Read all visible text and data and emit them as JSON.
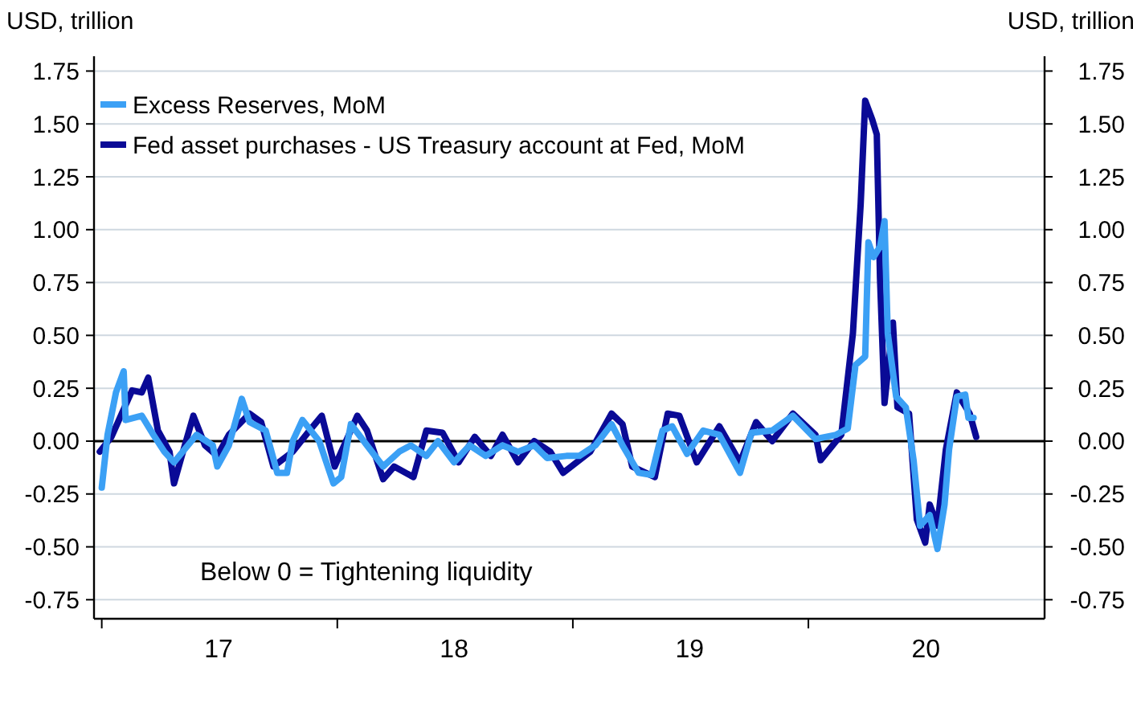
{
  "chart_data": {
    "type": "line",
    "ylabel": "USD, trillion",
    "y2label": "USD, trillion",
    "annotations": [
      "Below 0 = Tightening liquidity"
    ],
    "xlim": [
      "2016-12-20",
      "2021-01-01"
    ],
    "xticks": [
      {
        "value": "2017-01-01",
        "label": null
      },
      {
        "value": "2017-07-01",
        "label": "17"
      },
      {
        "value": "2018-01-01",
        "label": null
      },
      {
        "value": "2018-07-01",
        "label": "18"
      },
      {
        "value": "2019-01-01",
        "label": null
      },
      {
        "value": "2019-07-01",
        "label": "19"
      },
      {
        "value": "2020-01-01",
        "label": null
      },
      {
        "value": "2020-07-01",
        "label": "20"
      }
    ],
    "ylim": [
      -0.84,
      1.82
    ],
    "yticks": [
      {
        "value": -0.75,
        "label": "-0.75"
      },
      {
        "value": -0.5,
        "label": "-0.50"
      },
      {
        "value": -0.25,
        "label": "-0.25"
      },
      {
        "value": 0,
        "label": "0.00"
      },
      {
        "value": 0.25,
        "label": "0.25"
      },
      {
        "value": 0.5,
        "label": "0.50"
      },
      {
        "value": 0.75,
        "label": "0.75"
      },
      {
        "value": 1,
        "label": "1.00"
      },
      {
        "value": 1.25,
        "label": "1.25"
      },
      {
        "value": 1.5,
        "label": "1.50"
      },
      {
        "value": 1.75,
        "label": "1.75"
      }
    ],
    "y2lim": [
      -0.84,
      1.82
    ],
    "y2ticks": [
      {
        "value": -0.75,
        "label": "-0.75"
      },
      {
        "value": -0.5,
        "label": "-0.50"
      },
      {
        "value": -0.25,
        "label": "-0.25"
      },
      {
        "value": 0,
        "label": "0.00"
      },
      {
        "value": 0.25,
        "label": "0.25"
      },
      {
        "value": 0.5,
        "label": "0.50"
      },
      {
        "value": 0.75,
        "label": "0.75"
      },
      {
        "value": 1,
        "label": "1.00"
      },
      {
        "value": 1.25,
        "label": "1.25"
      },
      {
        "value": 1.5,
        "label": "1.50"
      },
      {
        "value": 1.75,
        "label": "1.75"
      }
    ],
    "grid": "y",
    "legend": "top left",
    "line_style": "solid",
    "ref_lines": [
      {
        "axis": "y",
        "value": 0,
        "color": "#000000"
      }
    ],
    "series": [
      {
        "name": "Fed asset purchases - US Treasury account at Fed, MoM",
        "color": "#0a0a96",
        "x": [
          "2016-12-29",
          "2017-01-16",
          "2017-02-17",
          "2017-03-04",
          "2017-03-14",
          "2017-03-29",
          "2017-04-16",
          "2017-04-23",
          "2017-05-05",
          "2017-05-23",
          "2017-06-10",
          "2017-06-29",
          "2017-07-17",
          "2017-08-18",
          "2017-09-05",
          "2017-09-24",
          "2017-10-24",
          "2017-11-19",
          "2017-12-08",
          "2017-12-28",
          "2018-02-01",
          "2018-02-16",
          "2018-03-13",
          "2018-03-30",
          "2018-04-29",
          "2018-05-19",
          "2018-06-13",
          "2018-07-08",
          "2018-08-02",
          "2018-08-27",
          "2018-09-14",
          "2018-10-08",
          "2018-11-02",
          "2018-11-27",
          "2018-12-17",
          "2019-01-28",
          "2019-03-02",
          "2019-03-19",
          "2019-04-03",
          "2019-05-08",
          "2019-05-28",
          "2019-06-15",
          "2019-07-12",
          "2019-08-16",
          "2019-09-17",
          "2019-10-12",
          "2019-11-06",
          "2019-12-08",
          "2020-01-12",
          "2020-01-20",
          "2020-02-21",
          "2020-03-10",
          "2020-03-22",
          "2020-03-29",
          "2020-04-09",
          "2020-04-16",
          "2020-04-21",
          "2020-04-28",
          "2020-05-11",
          "2020-05-18",
          "2020-06-05",
          "2020-06-17",
          "2020-06-30",
          "2020-07-07",
          "2020-07-19",
          "2020-08-01",
          "2020-08-18",
          "2020-09-07",
          "2020-09-17"
        ],
        "values": [
          -0.05,
          0.02,
          0.24,
          0.23,
          0.3,
          0.05,
          -0.05,
          -0.2,
          -0.07,
          0.12,
          -0.02,
          -0.07,
          0.03,
          0.13,
          0.09,
          -0.12,
          -0.05,
          0.05,
          0.12,
          -0.12,
          0.12,
          0.05,
          -0.18,
          -0.12,
          -0.17,
          0.05,
          0.04,
          -0.1,
          0.02,
          -0.07,
          0.03,
          -0.1,
          0.0,
          -0.05,
          -0.15,
          -0.05,
          0.13,
          0.08,
          -0.12,
          -0.17,
          0.13,
          0.12,
          -0.1,
          0.07,
          -0.1,
          0.09,
          0.0,
          0.13,
          0.03,
          -0.09,
          0.03,
          0.51,
          1.12,
          1.61,
          1.52,
          1.45,
          0.77,
          0.18,
          0.56,
          0.16,
          0.13,
          -0.37,
          -0.48,
          -0.3,
          -0.4,
          -0.04,
          0.23,
          0.13,
          0.02
        ]
      },
      {
        "name": "Excess Reserves, MoM",
        "color": "#3ba0f5",
        "x": [
          "2017-01-01",
          "2017-01-10",
          "2017-01-23",
          "2017-02-04",
          "2017-02-07",
          "2017-03-04",
          "2017-03-22",
          "2017-04-08",
          "2017-04-23",
          "2017-05-28",
          "2017-06-22",
          "2017-06-29",
          "2017-07-17",
          "2017-08-06",
          "2017-08-18",
          "2017-09-12",
          "2017-09-30",
          "2017-10-15",
          "2017-10-24",
          "2017-11-08",
          "2017-12-04",
          "2017-12-26",
          "2018-01-07",
          "2018-01-22",
          "2018-02-16",
          "2018-03-13",
          "2018-04-07",
          "2018-04-25",
          "2018-05-19",
          "2018-06-06",
          "2018-07-01",
          "2018-07-25",
          "2018-08-19",
          "2018-09-14",
          "2018-10-08",
          "2018-11-02",
          "2018-11-22",
          "2018-12-22",
          "2019-01-11",
          "2019-02-05",
          "2019-03-02",
          "2019-03-19",
          "2019-04-13",
          "2019-05-03",
          "2019-05-20",
          "2019-06-04",
          "2019-06-27",
          "2019-07-22",
          "2019-08-16",
          "2019-09-17",
          "2019-10-05",
          "2019-11-06",
          "2019-12-08",
          "2020-01-12",
          "2020-02-13",
          "2020-03-02",
          "2020-03-14",
          "2020-03-29",
          "2020-04-03",
          "2020-04-11",
          "2020-04-21",
          "2020-04-28",
          "2020-05-03",
          "2020-05-16",
          "2020-05-31",
          "2020-06-12",
          "2020-06-22",
          "2020-07-07",
          "2020-07-19",
          "2020-07-30",
          "2020-08-06",
          "2020-08-18",
          "2020-08-31",
          "2020-09-05",
          "2020-09-13"
        ],
        "values": [
          -0.22,
          0.03,
          0.23,
          0.33,
          0.1,
          0.12,
          0.03,
          -0.05,
          -0.1,
          0.03,
          -0.02,
          -0.12,
          -0.02,
          0.2,
          0.09,
          0.05,
          -0.15,
          -0.15,
          0.0,
          0.1,
          0.0,
          -0.2,
          -0.17,
          0.08,
          -0.02,
          -0.12,
          -0.05,
          -0.02,
          -0.07,
          0.0,
          -0.1,
          -0.02,
          -0.07,
          -0.02,
          -0.05,
          -0.02,
          -0.08,
          -0.07,
          -0.07,
          -0.02,
          0.08,
          -0.02,
          -0.15,
          -0.16,
          0.05,
          0.07,
          -0.06,
          0.05,
          0.03,
          -0.15,
          0.04,
          0.05,
          0.12,
          0.01,
          0.03,
          0.06,
          0.36,
          0.4,
          0.94,
          0.87,
          0.92,
          1.04,
          0.51,
          0.21,
          0.16,
          -0.09,
          -0.4,
          -0.35,
          -0.51,
          -0.3,
          -0.04,
          0.21,
          0.22,
          0.11,
          0.11
        ]
      }
    ]
  }
}
